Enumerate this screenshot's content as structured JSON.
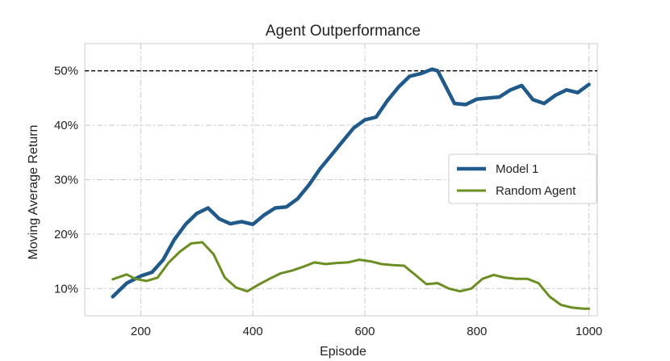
{
  "chart_data": {
    "type": "line",
    "title": "Agent Outperformance",
    "xlabel": "Episode",
    "ylabel": "Moving Average Return",
    "xlim": [
      100,
      1015
    ],
    "ylim": [
      0.05,
      0.55
    ],
    "xticks": [
      200,
      400,
      600,
      800,
      1000
    ],
    "xtick_labels": [
      "200",
      "400",
      "600",
      "800",
      "1000"
    ],
    "yticks": [
      0.1,
      0.2,
      0.3,
      0.4,
      0.5
    ],
    "ytick_labels": [
      "10%",
      "20%",
      "30%",
      "40%",
      "50%"
    ],
    "grid": true,
    "legend_position": "center-right",
    "reference_line": {
      "y": 0.5,
      "style": "dashed",
      "color": "#000000"
    },
    "series": [
      {
        "name": "Model 1",
        "color": "#1f5a8a",
        "x": [
          150,
          175,
          200,
          220,
          240,
          260,
          280,
          300,
          320,
          340,
          360,
          380,
          400,
          420,
          440,
          460,
          480,
          500,
          520,
          540,
          560,
          580,
          600,
          620,
          640,
          660,
          680,
          700,
          720,
          730,
          740,
          760,
          780,
          800,
          820,
          840,
          860,
          880,
          900,
          920,
          940,
          960,
          980,
          1000
        ],
        "y": [
          0.085,
          0.11,
          0.123,
          0.13,
          0.153,
          0.19,
          0.218,
          0.238,
          0.248,
          0.228,
          0.219,
          0.223,
          0.218,
          0.235,
          0.248,
          0.25,
          0.265,
          0.29,
          0.32,
          0.345,
          0.37,
          0.395,
          0.41,
          0.415,
          0.445,
          0.47,
          0.49,
          0.495,
          0.503,
          0.5,
          0.48,
          0.44,
          0.438,
          0.448,
          0.45,
          0.452,
          0.465,
          0.473,
          0.447,
          0.44,
          0.455,
          0.465,
          0.46,
          0.475
        ]
      },
      {
        "name": "Random Agent",
        "color": "#6b8e23",
        "x": [
          150,
          175,
          190,
          210,
          230,
          250,
          270,
          290,
          310,
          330,
          350,
          370,
          390,
          410,
          430,
          450,
          470,
          490,
          510,
          530,
          550,
          570,
          590,
          610,
          630,
          650,
          670,
          690,
          710,
          730,
          750,
          770,
          790,
          810,
          830,
          850,
          870,
          890,
          910,
          930,
          950,
          970,
          990,
          1000
        ],
        "y": [
          0.117,
          0.126,
          0.118,
          0.114,
          0.12,
          0.148,
          0.168,
          0.183,
          0.185,
          0.163,
          0.12,
          0.102,
          0.095,
          0.107,
          0.118,
          0.128,
          0.133,
          0.14,
          0.148,
          0.145,
          0.147,
          0.148,
          0.153,
          0.15,
          0.145,
          0.143,
          0.142,
          0.125,
          0.108,
          0.11,
          0.1,
          0.095,
          0.1,
          0.118,
          0.125,
          0.12,
          0.118,
          0.118,
          0.11,
          0.085,
          0.07,
          0.065,
          0.063,
          0.063
        ]
      }
    ]
  }
}
